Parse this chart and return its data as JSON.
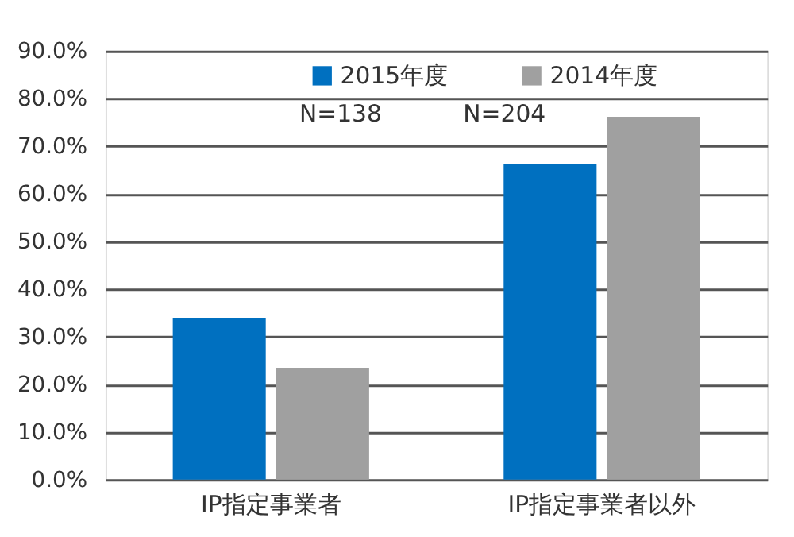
{
  "chart_data": {
    "type": "bar",
    "categories": [
      "IP指定事業者",
      "IP指定事業者以外"
    ],
    "series": [
      {
        "name": "2015年度",
        "color": "#0070c0",
        "values": [
          34.0,
          66.2
        ]
      },
      {
        "name": "2014年度",
        "color": "#a0a0a0",
        "values": [
          23.5,
          76.2
        ]
      }
    ],
    "annotations": [
      "N=138",
      "N=204"
    ],
    "ylim": [
      0,
      90
    ],
    "yticks": [
      {
        "value": 0,
        "label": "0.0%"
      },
      {
        "value": 10,
        "label": "10.0%"
      },
      {
        "value": 20,
        "label": "20.0%"
      },
      {
        "value": 30,
        "label": "30.0%"
      },
      {
        "value": 40,
        "label": "40.0%"
      },
      {
        "value": 50,
        "label": "50.0%"
      },
      {
        "value": 60,
        "label": "60.0%"
      },
      {
        "value": 70,
        "label": "70.0%"
      },
      {
        "value": 80,
        "label": "80.0%"
      },
      {
        "value": 90,
        "label": "90.0%"
      }
    ],
    "grid": "y",
    "legend": "top"
  }
}
